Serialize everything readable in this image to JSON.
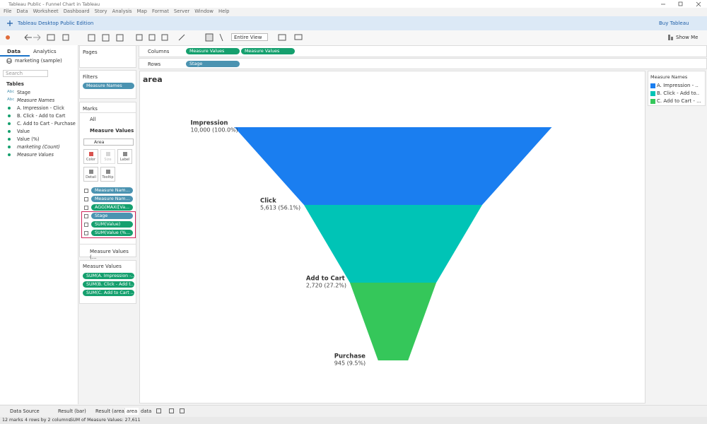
{
  "window": {
    "title": "Tableau Public - Funnel Chart in Tableau"
  },
  "menu": [
    "File",
    "Data",
    "Worksheet",
    "Dashboard",
    "Story",
    "Analysis",
    "Map",
    "Format",
    "Server",
    "Window",
    "Help"
  ],
  "banner": {
    "edition": "Tableau Desktop Public Edition",
    "buy": "Buy Tableau"
  },
  "toolbar": {
    "view": "Entire View",
    "show_me": "Show Me"
  },
  "data_pane": {
    "tabs": [
      "Data",
      "Analytics"
    ],
    "source": "marketing (sample)",
    "search": "Search",
    "tables": "Tables",
    "fields": [
      {
        "icon": "Abc",
        "name": "Stage"
      },
      {
        "icon": "Abc",
        "name": "Measure Names",
        "italic": true
      },
      {
        "name": "A. Impression - Click"
      },
      {
        "name": "B. Click - Add to Cart"
      },
      {
        "name": "C. Add to Cart - Purchase"
      },
      {
        "name": "Value"
      },
      {
        "name": "Value (%)"
      },
      {
        "name": "marketing (Count)",
        "italic": true
      },
      {
        "name": "Measure Values",
        "italic": true
      }
    ]
  },
  "pages": "Pages",
  "filters": {
    "title": "Filters",
    "pills": [
      {
        "text": "Measure Names",
        "kind": "dimension"
      }
    ]
  },
  "marks": {
    "title": "Marks",
    "all": "All",
    "measure_values": "Measure Values",
    "mark_type": "Area",
    "buttons": [
      "Color",
      "Size",
      "Label",
      "Detail",
      "Tooltip"
    ],
    "pills": [
      {
        "text": "Measure Nam...",
        "kind": "dimension"
      },
      {
        "text": "Measure Nam...",
        "kind": "dimension"
      },
      {
        "text": "AGG(MAX([Va...",
        "kind": "measure"
      },
      {
        "text": "Stage",
        "kind": "dimension"
      },
      {
        "text": "SUM(Value)",
        "kind": "measure"
      },
      {
        "text": "SUM(Value (%...",
        "kind": "measure"
      }
    ],
    "footer": "Measure Values (..."
  },
  "measure_values_card": {
    "title": "Measure Values",
    "pills": [
      {
        "text": "SUM(A. Impression -...",
        "kind": "measure"
      },
      {
        "text": "SUM(B. Click - Add t...",
        "kind": "measure"
      },
      {
        "text": "SUM(C. Add to Cart ...",
        "kind": "measure"
      }
    ]
  },
  "shelves": {
    "columns_label": "Columns",
    "columns": [
      "Measure Values",
      "Measure Values"
    ],
    "rows_label": "Rows",
    "rows": [
      "Stage"
    ]
  },
  "chart_data": {
    "type": "funnel",
    "title": "area",
    "categories": [
      "Impression",
      "Click",
      "Add to Cart",
      "Purchase"
    ],
    "values": [
      10000,
      5613,
      2720,
      945
    ],
    "value_labels": [
      "10,000 (100.0%)",
      "5,613 (56.1%)",
      "2,720 (27.2%)",
      "945 (9.5%)"
    ],
    "legend_title": "Measure Names",
    "series": [
      {
        "name": "A. Impression - ..",
        "color": "#1a7ef0"
      },
      {
        "name": "B. Click - Add to..",
        "color": "#00c4b6"
      },
      {
        "name": "C. Add to Cart - ...",
        "color": "#35c75a"
      }
    ]
  },
  "sheet_tabs": [
    "Data Source",
    "Result (bar)",
    "Result (area)",
    "area",
    "data"
  ],
  "status": [
    "12 marks",
    "4 rows by 2 columns",
    "SUM of Measure Values: 27,611"
  ]
}
